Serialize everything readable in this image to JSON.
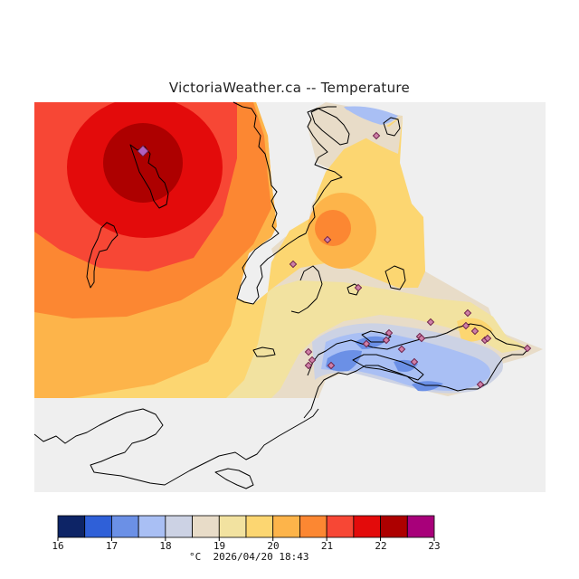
{
  "title": "VictoriaWeather.ca -- Temperature",
  "legend": {
    "ticks": [
      "16",
      "17",
      "18",
      "19",
      "20",
      "21",
      "22",
      "23"
    ],
    "colors": [
      "#0d2466",
      "#2f60d8",
      "#6b90e6",
      "#a9bff4",
      "#ccd2e4",
      "#e8dcc8",
      "#f2e2a0",
      "#fcd671",
      "#fdb44a",
      "#fc8732",
      "#f74735",
      "#e30b0b",
      "#ad0000",
      "#a8007a"
    ],
    "unit": "°C",
    "timestamp": "2026/04/20 18:43"
  },
  "map_colors": {
    "no_data": "#efefef",
    "land_outline": "#000000",
    "station_fill": "#ce7fa6",
    "station_stroke": "#6a1e46"
  },
  "stations_count": 24
}
